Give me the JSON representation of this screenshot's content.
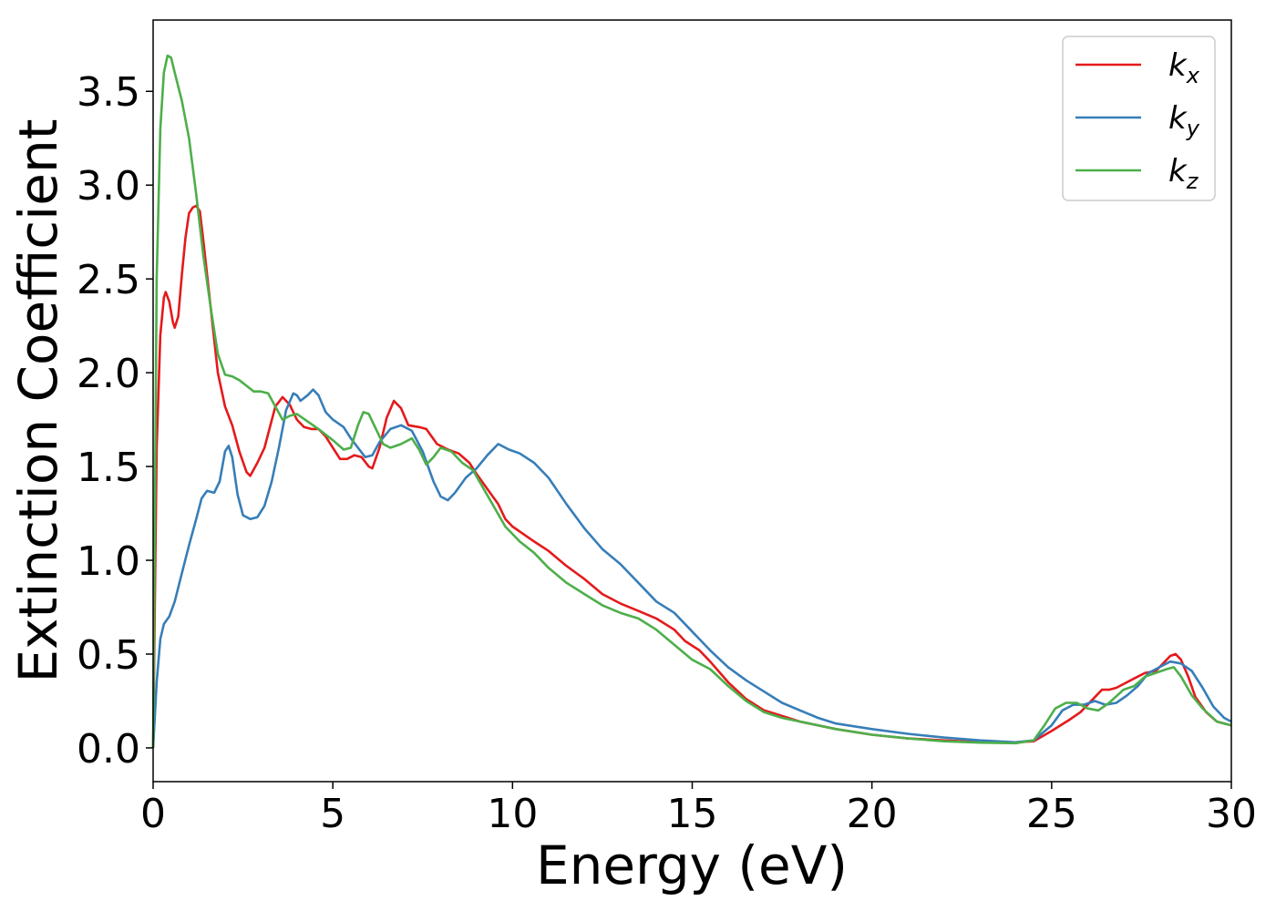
{
  "chart_data": {
    "type": "line",
    "xlabel": "Energy (eV)",
    "ylabel": "Extinction Coefficient",
    "xlim": [
      0,
      30
    ],
    "ylim": [
      -0.18,
      3.88
    ],
    "xticks": [
      "0",
      "5",
      "10",
      "15",
      "20",
      "25",
      "30"
    ],
    "yticks": [
      "0.0",
      "0.5",
      "1.0",
      "1.5",
      "2.0",
      "2.5",
      "3.0",
      "3.5"
    ],
    "grid": false,
    "legend_position": "top-right",
    "series": [
      {
        "name": "k_x",
        "label_main": "k",
        "label_sub": "x",
        "color": "#e41a1c",
        "points": [
          [
            0,
            0
          ],
          [
            0.1,
            1.6
          ],
          [
            0.2,
            2.2
          ],
          [
            0.3,
            2.4
          ],
          [
            0.35,
            2.43
          ],
          [
            0.45,
            2.38
          ],
          [
            0.55,
            2.27
          ],
          [
            0.6,
            2.24
          ],
          [
            0.7,
            2.3
          ],
          [
            0.8,
            2.52
          ],
          [
            0.9,
            2.72
          ],
          [
            1.0,
            2.85
          ],
          [
            1.1,
            2.88
          ],
          [
            1.2,
            2.89
          ],
          [
            1.3,
            2.86
          ],
          [
            1.4,
            2.7
          ],
          [
            1.6,
            2.35
          ],
          [
            1.8,
            2.0
          ],
          [
            2.0,
            1.82
          ],
          [
            2.2,
            1.72
          ],
          [
            2.4,
            1.58
          ],
          [
            2.6,
            1.47
          ],
          [
            2.7,
            1.45
          ],
          [
            2.9,
            1.52
          ],
          [
            3.1,
            1.6
          ],
          [
            3.4,
            1.82
          ],
          [
            3.6,
            1.87
          ],
          [
            3.8,
            1.83
          ],
          [
            4.0,
            1.75
          ],
          [
            4.2,
            1.71
          ],
          [
            4.4,
            1.7
          ],
          [
            4.6,
            1.7
          ],
          [
            4.8,
            1.66
          ],
          [
            5.0,
            1.6
          ],
          [
            5.2,
            1.54
          ],
          [
            5.4,
            1.54
          ],
          [
            5.6,
            1.56
          ],
          [
            5.8,
            1.55
          ],
          [
            6.0,
            1.5
          ],
          [
            6.1,
            1.49
          ],
          [
            6.3,
            1.6
          ],
          [
            6.5,
            1.76
          ],
          [
            6.7,
            1.85
          ],
          [
            6.9,
            1.81
          ],
          [
            7.1,
            1.72
          ],
          [
            7.4,
            1.71
          ],
          [
            7.6,
            1.7
          ],
          [
            7.9,
            1.62
          ],
          [
            8.2,
            1.59
          ],
          [
            8.5,
            1.57
          ],
          [
            8.8,
            1.52
          ],
          [
            9.0,
            1.46
          ],
          [
            9.3,
            1.38
          ],
          [
            9.6,
            1.3
          ],
          [
            9.8,
            1.22
          ],
          [
            10.0,
            1.18
          ],
          [
            10.3,
            1.14
          ],
          [
            10.6,
            1.1
          ],
          [
            11.0,
            1.05
          ],
          [
            11.5,
            0.97
          ],
          [
            12.0,
            0.9
          ],
          [
            12.5,
            0.82
          ],
          [
            13.0,
            0.77
          ],
          [
            13.5,
            0.73
          ],
          [
            14.0,
            0.69
          ],
          [
            14.5,
            0.63
          ],
          [
            14.8,
            0.57
          ],
          [
            15.2,
            0.52
          ],
          [
            15.5,
            0.46
          ],
          [
            16.0,
            0.35
          ],
          [
            16.5,
            0.26
          ],
          [
            17.0,
            0.2
          ],
          [
            17.5,
            0.17
          ],
          [
            18.0,
            0.14
          ],
          [
            19.0,
            0.1
          ],
          [
            20.0,
            0.07
          ],
          [
            21.0,
            0.05
          ],
          [
            22.0,
            0.04
          ],
          [
            23.0,
            0.03
          ],
          [
            24.0,
            0.03
          ],
          [
            24.5,
            0.035
          ],
          [
            25.0,
            0.09
          ],
          [
            25.5,
            0.15
          ],
          [
            25.8,
            0.19
          ],
          [
            26.0,
            0.23
          ],
          [
            26.2,
            0.27
          ],
          [
            26.4,
            0.31
          ],
          [
            26.6,
            0.31
          ],
          [
            26.8,
            0.32
          ],
          [
            27.0,
            0.34
          ],
          [
            27.3,
            0.37
          ],
          [
            27.6,
            0.4
          ],
          [
            27.9,
            0.41
          ],
          [
            28.1,
            0.45
          ],
          [
            28.3,
            0.49
          ],
          [
            28.45,
            0.5
          ],
          [
            28.6,
            0.47
          ],
          [
            28.8,
            0.38
          ],
          [
            29.0,
            0.27
          ],
          [
            29.3,
            0.19
          ],
          [
            29.6,
            0.14
          ],
          [
            30.0,
            0.12
          ]
        ]
      },
      {
        "name": "k_y",
        "label_main": "k",
        "label_sub": "y",
        "color": "#377eb8",
        "points": [
          [
            0,
            0
          ],
          [
            0.1,
            0.35
          ],
          [
            0.2,
            0.58
          ],
          [
            0.3,
            0.66
          ],
          [
            0.45,
            0.7
          ],
          [
            0.6,
            0.78
          ],
          [
            0.8,
            0.93
          ],
          [
            1.0,
            1.08
          ],
          [
            1.2,
            1.22
          ],
          [
            1.35,
            1.33
          ],
          [
            1.5,
            1.37
          ],
          [
            1.7,
            1.36
          ],
          [
            1.85,
            1.42
          ],
          [
            2.0,
            1.58
          ],
          [
            2.1,
            1.61
          ],
          [
            2.2,
            1.55
          ],
          [
            2.35,
            1.35
          ],
          [
            2.5,
            1.24
          ],
          [
            2.7,
            1.22
          ],
          [
            2.9,
            1.23
          ],
          [
            3.1,
            1.29
          ],
          [
            3.3,
            1.42
          ],
          [
            3.5,
            1.6
          ],
          [
            3.7,
            1.8
          ],
          [
            3.9,
            1.89
          ],
          [
            4.0,
            1.88
          ],
          [
            4.1,
            1.85
          ],
          [
            4.3,
            1.88
          ],
          [
            4.45,
            1.91
          ],
          [
            4.6,
            1.88
          ],
          [
            4.8,
            1.79
          ],
          [
            5.0,
            1.75
          ],
          [
            5.3,
            1.71
          ],
          [
            5.5,
            1.65
          ],
          [
            5.7,
            1.6
          ],
          [
            5.9,
            1.55
          ],
          [
            6.1,
            1.56
          ],
          [
            6.3,
            1.63
          ],
          [
            6.6,
            1.7
          ],
          [
            6.9,
            1.72
          ],
          [
            7.2,
            1.69
          ],
          [
            7.5,
            1.58
          ],
          [
            7.8,
            1.42
          ],
          [
            8.0,
            1.34
          ],
          [
            8.2,
            1.32
          ],
          [
            8.4,
            1.36
          ],
          [
            8.7,
            1.44
          ],
          [
            9.0,
            1.49
          ],
          [
            9.3,
            1.56
          ],
          [
            9.6,
            1.62
          ],
          [
            9.9,
            1.59
          ],
          [
            10.2,
            1.57
          ],
          [
            10.6,
            1.52
          ],
          [
            11.0,
            1.44
          ],
          [
            11.5,
            1.3
          ],
          [
            12.0,
            1.17
          ],
          [
            12.5,
            1.06
          ],
          [
            13.0,
            0.98
          ],
          [
            13.5,
            0.88
          ],
          [
            14.0,
            0.78
          ],
          [
            14.5,
            0.72
          ],
          [
            15.0,
            0.62
          ],
          [
            15.5,
            0.52
          ],
          [
            16.0,
            0.43
          ],
          [
            16.5,
            0.36
          ],
          [
            17.0,
            0.3
          ],
          [
            17.5,
            0.24
          ],
          [
            18.0,
            0.2
          ],
          [
            18.5,
            0.16
          ],
          [
            19.0,
            0.13
          ],
          [
            20.0,
            0.1
          ],
          [
            21.0,
            0.075
          ],
          [
            22.0,
            0.055
          ],
          [
            23.0,
            0.04
          ],
          [
            24.0,
            0.03
          ],
          [
            24.5,
            0.04
          ],
          [
            25.0,
            0.12
          ],
          [
            25.3,
            0.2
          ],
          [
            25.6,
            0.23
          ],
          [
            25.9,
            0.23
          ],
          [
            26.2,
            0.25
          ],
          [
            26.5,
            0.23
          ],
          [
            26.8,
            0.24
          ],
          [
            27.1,
            0.28
          ],
          [
            27.4,
            0.33
          ],
          [
            27.7,
            0.4
          ],
          [
            28.0,
            0.43
          ],
          [
            28.3,
            0.46
          ],
          [
            28.6,
            0.45
          ],
          [
            28.9,
            0.41
          ],
          [
            29.2,
            0.32
          ],
          [
            29.5,
            0.22
          ],
          [
            29.8,
            0.16
          ],
          [
            30.0,
            0.14
          ]
        ]
      },
      {
        "name": "k_z",
        "label_main": "k",
        "label_sub": "z",
        "color": "#4daf4a",
        "points": [
          [
            0,
            0
          ],
          [
            0.1,
            2.5
          ],
          [
            0.2,
            3.3
          ],
          [
            0.3,
            3.6
          ],
          [
            0.4,
            3.69
          ],
          [
            0.5,
            3.68
          ],
          [
            0.6,
            3.6
          ],
          [
            0.8,
            3.45
          ],
          [
            1.0,
            3.25
          ],
          [
            1.2,
            2.95
          ],
          [
            1.4,
            2.62
          ],
          [
            1.6,
            2.35
          ],
          [
            1.8,
            2.1
          ],
          [
            2.0,
            1.99
          ],
          [
            2.2,
            1.98
          ],
          [
            2.4,
            1.96
          ],
          [
            2.6,
            1.93
          ],
          [
            2.8,
            1.9
          ],
          [
            3.0,
            1.9
          ],
          [
            3.2,
            1.89
          ],
          [
            3.4,
            1.82
          ],
          [
            3.6,
            1.75
          ],
          [
            3.8,
            1.77
          ],
          [
            4.0,
            1.78
          ],
          [
            4.3,
            1.74
          ],
          [
            4.6,
            1.7
          ],
          [
            5.0,
            1.64
          ],
          [
            5.3,
            1.59
          ],
          [
            5.5,
            1.6
          ],
          [
            5.7,
            1.72
          ],
          [
            5.85,
            1.79
          ],
          [
            6.0,
            1.78
          ],
          [
            6.2,
            1.7
          ],
          [
            6.4,
            1.62
          ],
          [
            6.6,
            1.6
          ],
          [
            6.9,
            1.62
          ],
          [
            7.2,
            1.65
          ],
          [
            7.4,
            1.59
          ],
          [
            7.6,
            1.51
          ],
          [
            7.8,
            1.55
          ],
          [
            8.0,
            1.6
          ],
          [
            8.3,
            1.58
          ],
          [
            8.6,
            1.52
          ],
          [
            8.9,
            1.48
          ],
          [
            9.2,
            1.38
          ],
          [
            9.5,
            1.28
          ],
          [
            9.8,
            1.18
          ],
          [
            10.2,
            1.1
          ],
          [
            10.6,
            1.04
          ],
          [
            11.0,
            0.96
          ],
          [
            11.5,
            0.88
          ],
          [
            12.0,
            0.82
          ],
          [
            12.5,
            0.76
          ],
          [
            13.0,
            0.72
          ],
          [
            13.5,
            0.69
          ],
          [
            14.0,
            0.63
          ],
          [
            14.5,
            0.55
          ],
          [
            15.0,
            0.47
          ],
          [
            15.5,
            0.42
          ],
          [
            16.0,
            0.33
          ],
          [
            16.5,
            0.25
          ],
          [
            17.0,
            0.19
          ],
          [
            17.5,
            0.16
          ],
          [
            18.0,
            0.14
          ],
          [
            19.0,
            0.1
          ],
          [
            20.0,
            0.07
          ],
          [
            21.0,
            0.05
          ],
          [
            22.0,
            0.035
          ],
          [
            23.0,
            0.028
          ],
          [
            24.0,
            0.025
          ],
          [
            24.5,
            0.04
          ],
          [
            24.8,
            0.12
          ],
          [
            25.1,
            0.21
          ],
          [
            25.4,
            0.24
          ],
          [
            25.7,
            0.24
          ],
          [
            26.0,
            0.21
          ],
          [
            26.3,
            0.2
          ],
          [
            26.6,
            0.24
          ],
          [
            27.0,
            0.31
          ],
          [
            27.3,
            0.33
          ],
          [
            27.6,
            0.38
          ],
          [
            27.9,
            0.4
          ],
          [
            28.2,
            0.42
          ],
          [
            28.4,
            0.43
          ],
          [
            28.6,
            0.38
          ],
          [
            28.9,
            0.28
          ],
          [
            29.2,
            0.21
          ],
          [
            29.6,
            0.14
          ],
          [
            30.0,
            0.12
          ]
        ]
      }
    ]
  }
}
